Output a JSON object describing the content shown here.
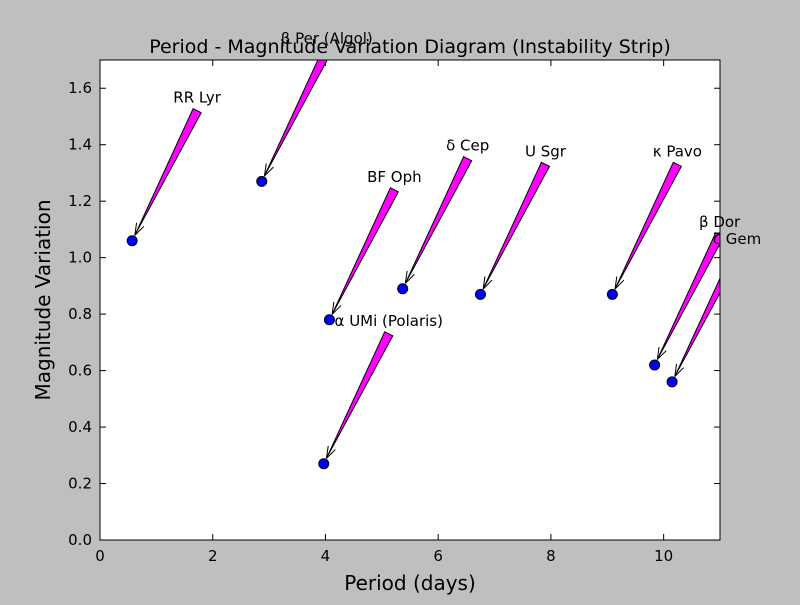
{
  "chart_data": {
    "type": "scatter",
    "title": "Period - Magnitude Variation Diagram (Instability Strip)",
    "xlabel": "Period (days)",
    "ylabel": "Magnitude Variation",
    "xlim": [
      0,
      11
    ],
    "ylim": [
      0.0,
      1.7
    ],
    "xticks": [
      "0",
      "2",
      "4",
      "6",
      "8",
      "10"
    ],
    "yticks": [
      "0.0",
      "0.2",
      "0.4",
      "0.6",
      "0.8",
      "1.0",
      "1.2",
      "1.4",
      "1.6"
    ],
    "grid": false,
    "colors": {
      "background": "#bfbfbf",
      "plot_area": "#ffffff",
      "marker": "#0000ff",
      "arrow": "#ff00ff"
    },
    "points": [
      {
        "label": "RR Lyr",
        "x": 0.57,
        "y": 1.06
      },
      {
        "label": "β Per (Algol)",
        "x": 2.87,
        "y": 1.27
      },
      {
        "label": "BF Oph",
        "x": 4.07,
        "y": 0.78
      },
      {
        "label": "α UMi (Polaris)",
        "x": 3.97,
        "y": 0.27
      },
      {
        "label": "δ Cep",
        "x": 5.37,
        "y": 0.89
      },
      {
        "label": "U Sgr",
        "x": 6.75,
        "y": 0.87
      },
      {
        "label": "κ Pavo",
        "x": 9.09,
        "y": 0.87
      },
      {
        "label": "β Dor",
        "x": 9.84,
        "y": 0.62
      },
      {
        "label": "ζ Gem",
        "x": 10.15,
        "y": 0.56
      }
    ]
  }
}
